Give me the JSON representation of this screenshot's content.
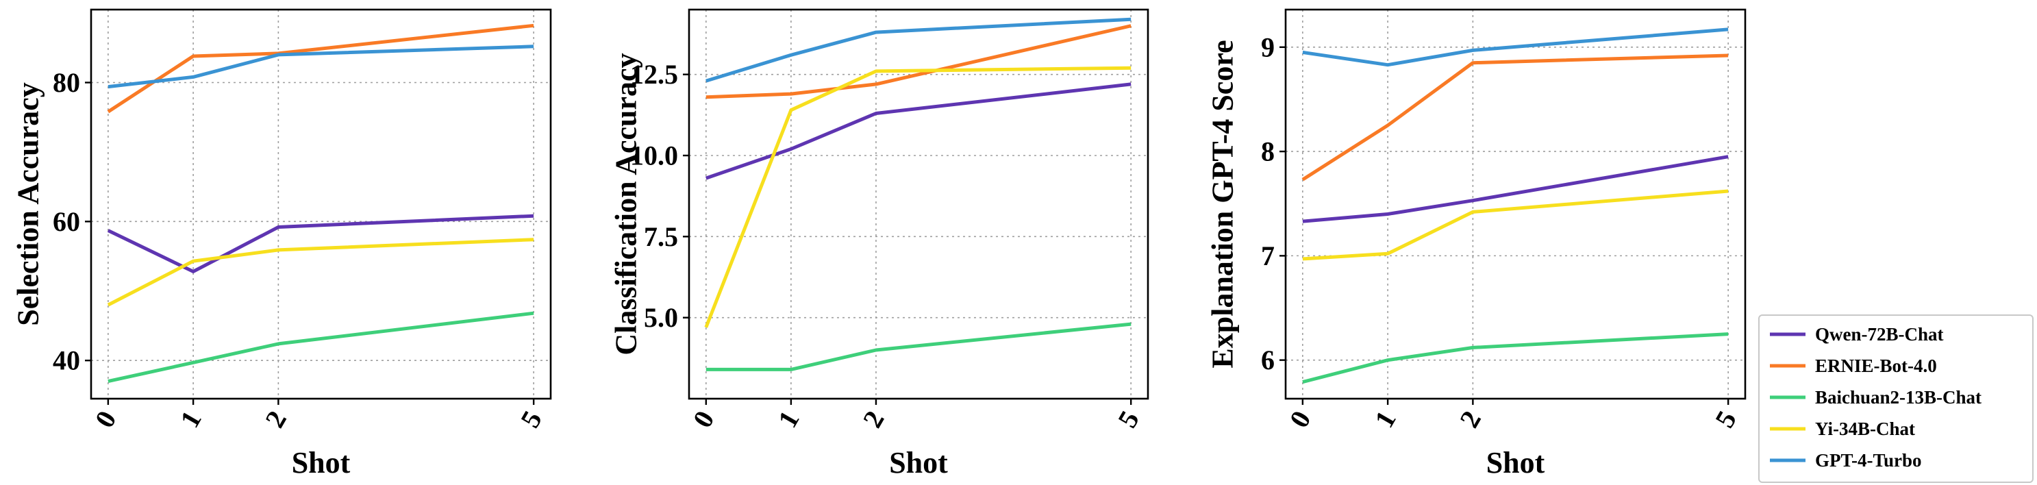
{
  "chart_data": [
    {
      "type": "line",
      "xlabel": "Shot",
      "ylabel": "Selection Accuracy",
      "x": [
        0,
        1,
        2,
        5
      ],
      "x_tick_labels": [
        "0",
        "1",
        "2",
        "5"
      ],
      "xlim": [
        -0.2,
        5.2
      ],
      "ylim": [
        34.5,
        90.5
      ],
      "y_ticks": [
        40,
        60,
        80
      ],
      "y_tick_labels": [
        "40",
        "60",
        "80"
      ],
      "grid": true,
      "series": [
        {
          "name": "Qwen-72B-Chat",
          "color": "#5e35b1",
          "values": [
            58.7,
            52.8,
            59.2,
            60.8
          ]
        },
        {
          "name": "ERNIE-Bot-4.0",
          "color": "#f97a25",
          "values": [
            75.8,
            83.8,
            84.2,
            88.2
          ]
        },
        {
          "name": "Baichuan2-13B-Chat",
          "color": "#3ecf7a",
          "values": [
            37.0,
            39.7,
            42.4,
            46.8
          ]
        },
        {
          "name": "Yi-34B-Chat",
          "color": "#f7df1e",
          "values": [
            48.0,
            54.3,
            55.9,
            57.4
          ]
        },
        {
          "name": "GPT-4-Turbo",
          "color": "#3a93d3",
          "values": [
            79.4,
            80.8,
            84.0,
            85.2
          ]
        }
      ]
    },
    {
      "type": "line",
      "xlabel": "Shot",
      "ylabel": "Classification Accuracy",
      "x": [
        0,
        1,
        2,
        5
      ],
      "x_tick_labels": [
        "0",
        "1",
        "2",
        "5"
      ],
      "xlim": [
        -0.2,
        5.2
      ],
      "ylim": [
        2.5,
        14.5
      ],
      "y_ticks": [
        5.0,
        7.5,
        10.0,
        12.5
      ],
      "y_tick_labels": [
        "5.0",
        "7.5",
        "10.0",
        "12.5"
      ],
      "grid": true,
      "series": [
        {
          "name": "Qwen-72B-Chat",
          "color": "#5e35b1",
          "values": [
            9.3,
            10.2,
            11.3,
            12.2
          ]
        },
        {
          "name": "ERNIE-Bot-4.0",
          "color": "#f97a25",
          "values": [
            11.8,
            11.9,
            12.2,
            14.0
          ]
        },
        {
          "name": "Baichuan2-13B-Chat",
          "color": "#3ecf7a",
          "values": [
            3.4,
            3.4,
            4.0,
            4.8
          ]
        },
        {
          "name": "Yi-34B-Chat",
          "color": "#f7df1e",
          "values": [
            4.7,
            11.4,
            12.6,
            12.7
          ]
        },
        {
          "name": "GPT-4-Turbo",
          "color": "#3a93d3",
          "values": [
            12.3,
            13.1,
            13.8,
            14.2
          ]
        }
      ]
    },
    {
      "type": "line",
      "xlabel": "Shot",
      "ylabel": "Explanation GPT-4 Score",
      "x": [
        0,
        1,
        2,
        5
      ],
      "x_tick_labels": [
        "0",
        "1",
        "2",
        "5"
      ],
      "xlim": [
        -0.2,
        5.2
      ],
      "ylim": [
        5.63,
        9.36
      ],
      "y_ticks": [
        6,
        7,
        8,
        9
      ],
      "y_tick_labels": [
        "6",
        "7",
        "8",
        "9"
      ],
      "grid": true,
      "series": [
        {
          "name": "Qwen-72B-Chat",
          "color": "#5e35b1",
          "values": [
            7.33,
            7.4,
            7.53,
            7.95
          ]
        },
        {
          "name": "ERNIE-Bot-4.0",
          "color": "#f97a25",
          "values": [
            7.73,
            8.25,
            8.85,
            8.92
          ]
        },
        {
          "name": "Baichuan2-13B-Chat",
          "color": "#3ecf7a",
          "values": [
            5.79,
            6.0,
            6.12,
            6.25
          ]
        },
        {
          "name": "Yi-34B-Chat",
          "color": "#f7df1e",
          "values": [
            6.97,
            7.02,
            7.42,
            7.62
          ]
        },
        {
          "name": "GPT-4-Turbo",
          "color": "#3a93d3",
          "values": [
            8.95,
            8.83,
            8.97,
            9.17
          ]
        }
      ]
    }
  ],
  "legend": {
    "placement": "bottom-right, outside plot area",
    "entries": [
      {
        "label": "Qwen-72B-Chat",
        "color": "#5e35b1"
      },
      {
        "label": "ERNIE-Bot-4.0",
        "color": "#f97a25"
      },
      {
        "label": "Baichuan2-13B-Chat",
        "color": "#3ecf7a"
      },
      {
        "label": "Yi-34B-Chat",
        "color": "#f7df1e"
      },
      {
        "label": "GPT-4-Turbo",
        "color": "#3a93d3"
      }
    ]
  }
}
